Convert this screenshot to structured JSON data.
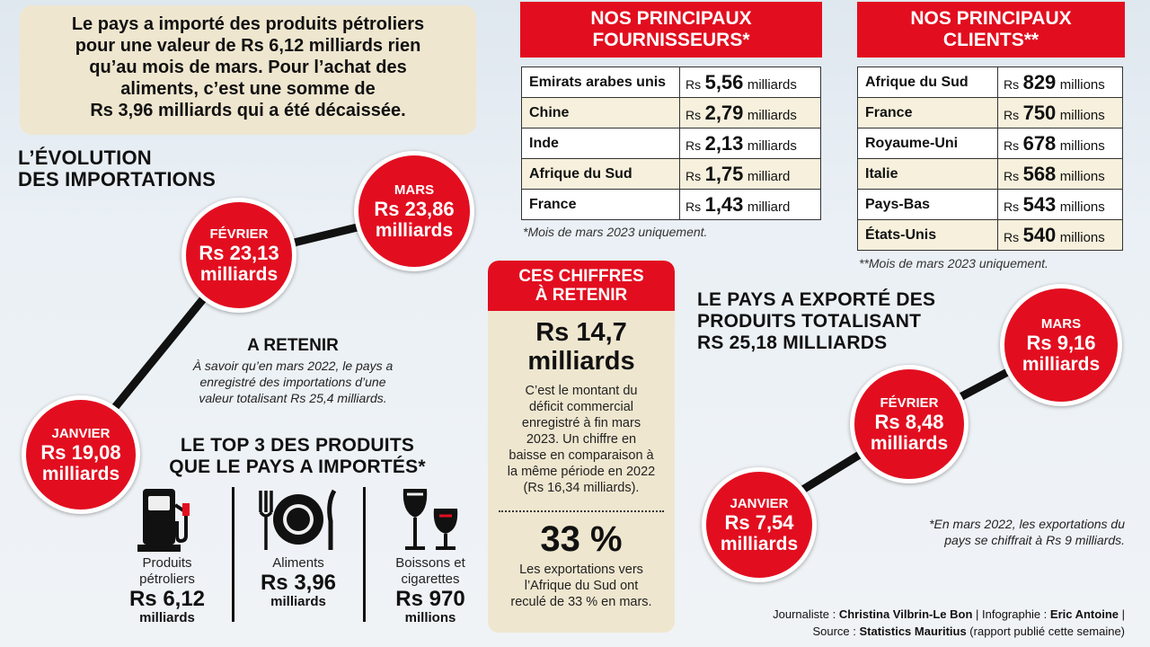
{
  "intro": {
    "lines": [
      "Le pays a importé des produits pétroliers",
      "pour une valeur de Rs 6,12 milliards rien",
      "qu’au mois de mars. Pour l’achat des",
      "aliments, c’est une somme de",
      "Rs 3,96 milliards qui a été décaissée."
    ]
  },
  "imports": {
    "title_l1": "L’ÉVOLUTION",
    "title_l2": "DES IMPORTATIONS",
    "points": [
      {
        "month": "JANVIER",
        "value": "Rs 19,08",
        "unit": "milliards"
      },
      {
        "month": "FÉVRIER",
        "value": "Rs 23,13",
        "unit": "milliards"
      },
      {
        "month": "MARS",
        "value": "Rs 23,86",
        "unit": "milliards"
      }
    ],
    "retenir_title": "A RETENIR",
    "retenir_lines": [
      "À savoir qu’en mars 2022, le pays a",
      "enregistré des importations d’une",
      "valeur totalisant Rs 25,4 milliards."
    ]
  },
  "top3": {
    "title_l1": "LE TOP 3 DES PRODUITS",
    "title_l2": "QUE LE PAYS A IMPORTÉS*",
    "items": [
      {
        "icon": "fuel-pump-icon",
        "label_l1": "Produits",
        "label_l2": "pétroliers",
        "value": "Rs 6,12",
        "unit": "milliards"
      },
      {
        "icon": "plate-cutlery-icon",
        "label_l1": "Aliments",
        "label_l2": "",
        "value": "Rs 3,96",
        "unit": "milliards"
      },
      {
        "icon": "wine-glasses-icon",
        "label_l1": "Boissons et",
        "label_l2": "cigarettes",
        "value": "Rs 970",
        "unit": "millions"
      }
    ]
  },
  "suppliers": {
    "title_l1": "NOS PRINCIPAUX",
    "title_l2": "FOURNISSEURS*",
    "rows": [
      {
        "name": "Emirats arabes unis",
        "rs": "Rs",
        "value": "5,56",
        "unit": "milliards"
      },
      {
        "name": "Chine",
        "rs": "Rs",
        "value": "2,79",
        "unit": "milliards"
      },
      {
        "name": "Inde",
        "rs": "Rs",
        "value": "2,13",
        "unit": "milliards"
      },
      {
        "name": "Afrique du Sud",
        "rs": "Rs",
        "value": "1,75",
        "unit": "milliard"
      },
      {
        "name": "France",
        "rs": "Rs",
        "value": "1,43",
        "unit": "milliard"
      }
    ],
    "note": "*Mois de mars 2023 uniquement."
  },
  "clients": {
    "title_l1": "NOS PRINCIPAUX",
    "title_l2": "CLIENTS**",
    "rows": [
      {
        "name": "Afrique du Sud",
        "rs": "Rs",
        "value": "829",
        "unit": "millions"
      },
      {
        "name": "France",
        "rs": "Rs",
        "value": "750",
        "unit": "millions"
      },
      {
        "name": "Royaume-Uni",
        "rs": "Rs",
        "value": "678",
        "unit": "millions"
      },
      {
        "name": "Italie",
        "rs": "Rs",
        "value": "568",
        "unit": "millions"
      },
      {
        "name": "Pays-Bas",
        "rs": "Rs",
        "value": "543",
        "unit": "millions"
      },
      {
        "name": "États-Unis",
        "rs": "Rs",
        "value": "540",
        "unit": "millions"
      }
    ],
    "note": "**Mois de mars 2023 uniquement."
  },
  "chiffres": {
    "title_l1": "CES CHIFFRES",
    "title_l2": "À RETENIR",
    "big1_l1": "Rs 14,7",
    "big1_l2": "milliards",
    "text1": [
      "C’est le montant du",
      "déficit commercial",
      "enregistré à fin mars",
      "2023. Un chiffre en",
      "baisse en comparaison à",
      "la même période en 2022",
      "(Rs 16,34 milliards)."
    ],
    "big2": "33 %",
    "text2": [
      "Les exportations vers",
      "l’Afrique du Sud ont",
      "reculé de 33 % en mars."
    ]
  },
  "exports": {
    "title_l1": "LE PAYS A EXPORTÉ DES",
    "title_l2": "PRODUITS TOTALISANT",
    "title_l3": "RS 25,18 MILLIARDS",
    "points": [
      {
        "month": "JANVIER",
        "value": "Rs 7,54",
        "unit": "milliards"
      },
      {
        "month": "FÉVRIER",
        "value": "Rs 8,48",
        "unit": "milliards"
      },
      {
        "month": "MARS",
        "value": "Rs 9,16",
        "unit": "milliards"
      }
    ],
    "note_l1": "*En mars 2022, les exportations du",
    "note_l2": "pays se chiffrait à Rs 9 milliards."
  },
  "credits": {
    "journalist_label": "Journaliste : ",
    "journalist": "Christina Vilbrin-Le Bon",
    "infographic_label": " | Infographie : ",
    "infographic": "Eric Antoine",
    "end": " |",
    "source_label": "Source : ",
    "source": "Statistics Mauritius",
    "source_note": " (rapport publié cette semaine)"
  },
  "colors": {
    "accent_red": "#e20e1f",
    "beige": "#efe6cf",
    "line": "#111111"
  }
}
